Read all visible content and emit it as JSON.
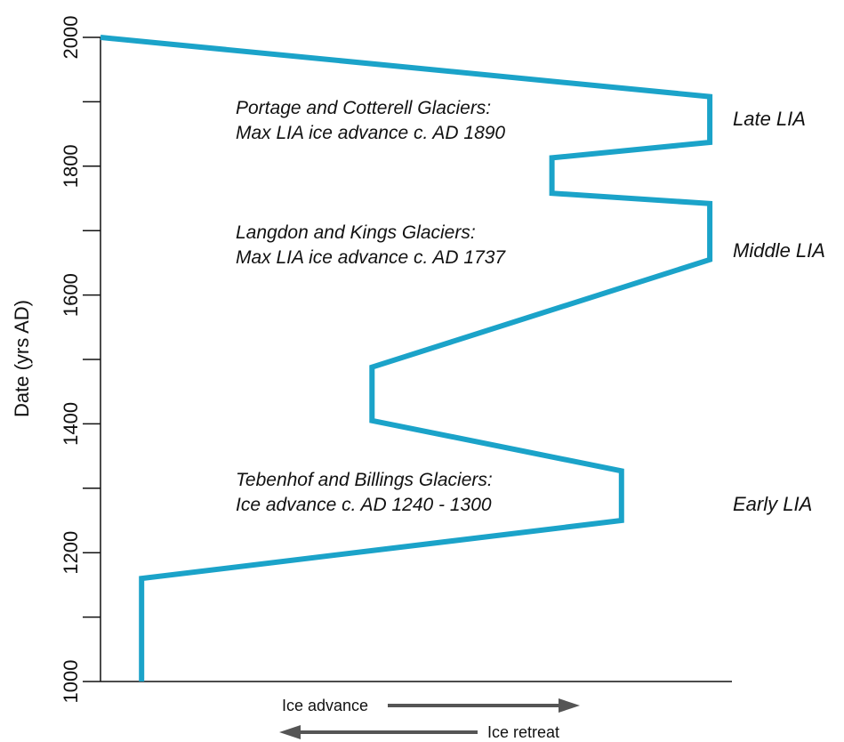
{
  "chart_data": {
    "type": "line",
    "ylabel": "Date (yrs AD)",
    "xlabel": "",
    "ylim": [
      1000,
      2000
    ],
    "xlim": [
      0,
      100
    ],
    "y_ticks": [
      1000,
      1100,
      1200,
      1300,
      1400,
      1500,
      1600,
      1700,
      1800,
      1900,
      2000
    ],
    "y_tick_labels": [
      "1000",
      "1200",
      "1400",
      "1600",
      "1800",
      "2000"
    ],
    "grid": false,
    "line_color": "#1ba3c9",
    "series": [
      {
        "x": [
          6.5,
          6.5,
          82.5,
          82.5,
          43,
          43,
          96.5,
          96.5,
          71.5,
          71.5,
          96.5,
          96.5,
          0
        ],
        "y": [
          1000,
          1160,
          1250,
          1327,
          1405,
          1488,
          1655,
          1742,
          1758,
          1813,
          1837,
          1908,
          2000
        ]
      }
    ],
    "annotations": [
      {
        "lines": [
          "Portage and Cotterell Glaciers:",
          "Max LIA ice advance c. AD 1890"
        ]
      },
      {
        "lines": [
          "Langdon and Kings Glaciers:",
          "Max LIA ice advance c. AD 1737"
        ]
      },
      {
        "lines": [
          "Tebenhof and Billings Glaciers:",
          "Ice advance c. AD 1240 - 1300"
        ]
      }
    ],
    "phases": [
      "Late LIA",
      "Middle LIA",
      "Early LIA"
    ],
    "arrows": {
      "advance": "Ice advance",
      "retreat": "Ice retreat",
      "color": "#555555"
    }
  }
}
